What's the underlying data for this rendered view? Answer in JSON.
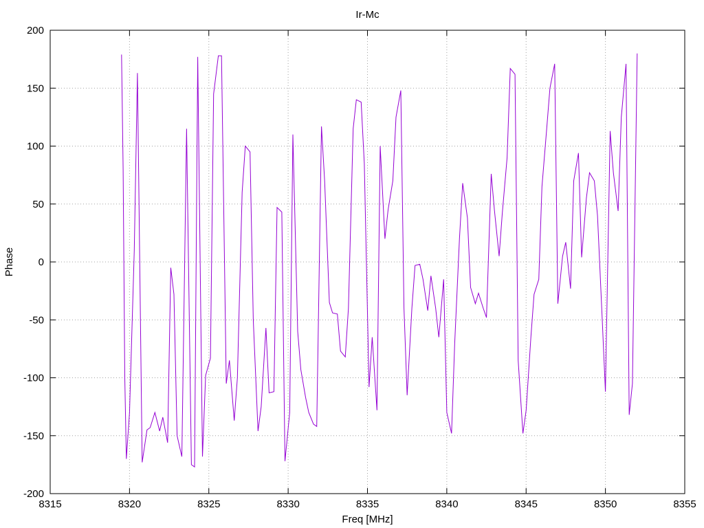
{
  "chart_data": {
    "type": "line",
    "title": "Ir-Mc",
    "xlabel": "Freq [MHz]",
    "ylabel": "Phase",
    "xlim": [
      8315,
      8355
    ],
    "ylim": [
      -200,
      200
    ],
    "xticks": [
      8315,
      8320,
      8325,
      8330,
      8335,
      8340,
      8345,
      8350,
      8355
    ],
    "yticks": [
      -200,
      -150,
      -100,
      -50,
      0,
      50,
      100,
      150,
      200
    ],
    "grid": true,
    "legend": "none",
    "series": [
      {
        "color": "#9400d3",
        "points": [
          [
            8319.5,
            179
          ],
          [
            8319.6,
            80
          ],
          [
            8319.7,
            -100
          ],
          [
            8319.8,
            -170
          ],
          [
            8320.0,
            -130
          ],
          [
            8320.3,
            10
          ],
          [
            8320.5,
            163
          ],
          [
            8320.8,
            -173
          ],
          [
            8321.1,
            -145
          ],
          [
            8321.3,
            -143
          ],
          [
            8321.6,
            -130
          ],
          [
            8321.9,
            -146
          ],
          [
            8322.1,
            -134
          ],
          [
            8322.4,
            -156
          ],
          [
            8322.6,
            -5
          ],
          [
            8322.8,
            -28
          ],
          [
            8323.0,
            -150
          ],
          [
            8323.3,
            -168
          ],
          [
            8323.6,
            115
          ],
          [
            8323.9,
            -175
          ],
          [
            8324.1,
            -177
          ],
          [
            8324.3,
            177
          ],
          [
            8324.6,
            -168
          ],
          [
            8324.8,
            -98
          ],
          [
            8325.1,
            -83
          ],
          [
            8325.3,
            145
          ],
          [
            8325.6,
            178
          ],
          [
            8325.8,
            178
          ],
          [
            8326.1,
            -105
          ],
          [
            8326.3,
            -85
          ],
          [
            8326.6,
            -137
          ],
          [
            8326.8,
            -100
          ],
          [
            8327.1,
            60
          ],
          [
            8327.3,
            100
          ],
          [
            8327.6,
            95
          ],
          [
            8327.8,
            -50
          ],
          [
            8328.1,
            -146
          ],
          [
            8328.3,
            -125
          ],
          [
            8328.6,
            -57
          ],
          [
            8328.8,
            -113
          ],
          [
            8329.1,
            -112
          ],
          [
            8329.3,
            47
          ],
          [
            8329.6,
            43
          ],
          [
            8329.8,
            -172
          ],
          [
            8330.1,
            -130
          ],
          [
            8330.3,
            110
          ],
          [
            8330.6,
            -60
          ],
          [
            8330.8,
            -93
          ],
          [
            8331.1,
            -117
          ],
          [
            8331.3,
            -130
          ],
          [
            8331.6,
            -140
          ],
          [
            8331.8,
            -142
          ],
          [
            8332.1,
            117
          ],
          [
            8332.3,
            70
          ],
          [
            8332.6,
            -35
          ],
          [
            8332.8,
            -44
          ],
          [
            8333.1,
            -45
          ],
          [
            8333.3,
            -77
          ],
          [
            8333.6,
            -82
          ],
          [
            8333.8,
            -40
          ],
          [
            8334.1,
            115
          ],
          [
            8334.3,
            140
          ],
          [
            8334.6,
            138
          ],
          [
            8334.8,
            85
          ],
          [
            8335.1,
            -108
          ],
          [
            8335.3,
            -65
          ],
          [
            8335.6,
            -128
          ],
          [
            8335.8,
            100
          ],
          [
            8336.1,
            20
          ],
          [
            8336.3,
            45
          ],
          [
            8336.6,
            70
          ],
          [
            8336.8,
            125
          ],
          [
            8337.1,
            148
          ],
          [
            8337.3,
            -40
          ],
          [
            8337.5,
            -115
          ],
          [
            8337.8,
            -40
          ],
          [
            8338.0,
            -3
          ],
          [
            8338.3,
            -2
          ],
          [
            8338.5,
            -15
          ],
          [
            8338.8,
            -42
          ],
          [
            8339.0,
            -12
          ],
          [
            8339.3,
            -40
          ],
          [
            8339.5,
            -65
          ],
          [
            8339.8,
            -15
          ],
          [
            8340.0,
            -130
          ],
          [
            8340.3,
            -148
          ],
          [
            8340.5,
            -70
          ],
          [
            8340.8,
            20
          ],
          [
            8341.0,
            68
          ],
          [
            8341.3,
            38
          ],
          [
            8341.5,
            -22
          ],
          [
            8341.8,
            -36
          ],
          [
            8342.0,
            -27
          ],
          [
            8342.3,
            -40
          ],
          [
            8342.5,
            -48
          ],
          [
            8342.8,
            76
          ],
          [
            8343.0,
            45
          ],
          [
            8343.3,
            5
          ],
          [
            8343.5,
            42
          ],
          [
            8343.8,
            90
          ],
          [
            8344.0,
            167
          ],
          [
            8344.3,
            162
          ],
          [
            8344.5,
            -85
          ],
          [
            8344.8,
            -148
          ],
          [
            8345.0,
            -128
          ],
          [
            8345.3,
            -65
          ],
          [
            8345.5,
            -28
          ],
          [
            8345.8,
            -15
          ],
          [
            8346.0,
            65
          ],
          [
            8346.3,
            115
          ],
          [
            8346.5,
            150
          ],
          [
            8346.8,
            171
          ],
          [
            8347.0,
            -36
          ],
          [
            8347.3,
            5
          ],
          [
            8347.5,
            17
          ],
          [
            8347.8,
            -23
          ],
          [
            8348.0,
            70
          ],
          [
            8348.3,
            94
          ],
          [
            8348.5,
            4
          ],
          [
            8348.8,
            55
          ],
          [
            8349.0,
            77
          ],
          [
            8349.3,
            70
          ],
          [
            8349.5,
            40
          ],
          [
            8349.8,
            -50
          ],
          [
            8350.0,
            -112
          ],
          [
            8350.3,
            113
          ],
          [
            8350.5,
            77
          ],
          [
            8350.8,
            44
          ],
          [
            8351.0,
            125
          ],
          [
            8351.3,
            171
          ],
          [
            8351.5,
            -132
          ],
          [
            8351.7,
            -105
          ],
          [
            8352.0,
            180
          ]
        ]
      }
    ]
  }
}
